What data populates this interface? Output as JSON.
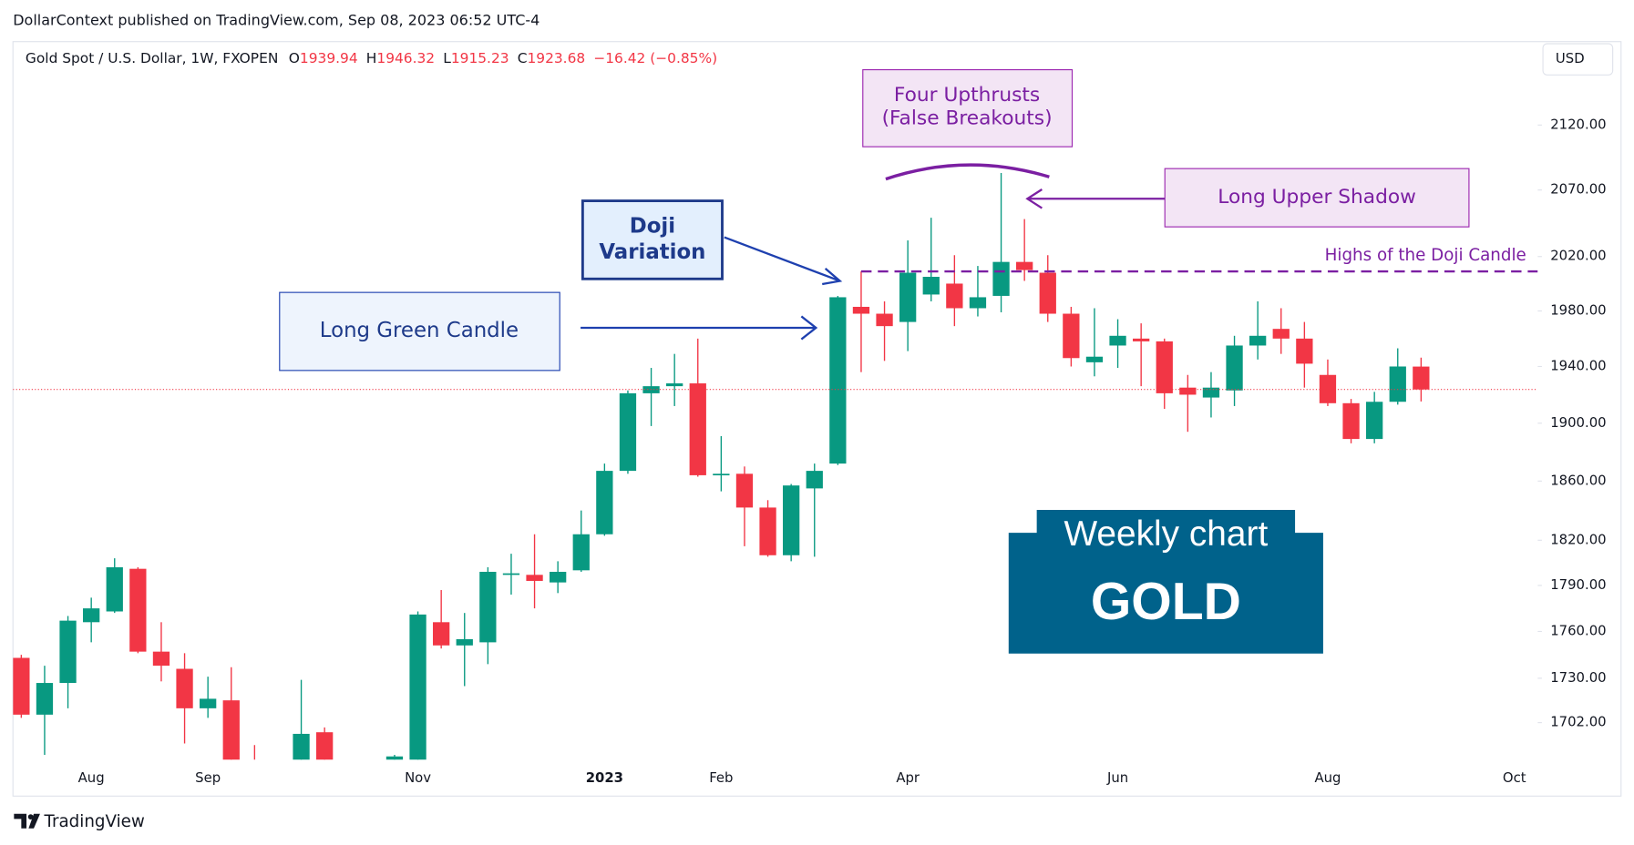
{
  "header": {
    "published": "DollarContext published on TradingView.com, Sep 08, 2023 06:52 UTC-4",
    "symbol": "Gold Spot / U.S. Dollar, 1W, FXOPEN",
    "ohlc": [
      {
        "label": "O",
        "value": "1939.94"
      },
      {
        "label": "H",
        "value": "1946.32"
      },
      {
        "label": "L",
        "value": "1915.23"
      },
      {
        "label": "C",
        "value": "1923.68"
      }
    ],
    "change": "−16.42 (−0.85%)",
    "currency": "USD"
  },
  "annotations": {
    "upthrusts": [
      "Four Upthrusts",
      "(False Breakouts)"
    ],
    "upper_shadow": "Long Upper Shadow",
    "doji_highs": "Highs of the Doji Candle",
    "doji": [
      "Doji",
      "Variation"
    ],
    "green_candle": "Long Green Candle",
    "badge": [
      "Weekly chart",
      "GOLD"
    ]
  },
  "footer": {
    "brand": "TradingView"
  },
  "chart_data": {
    "type": "candlestick",
    "log_scale": true,
    "grid": false,
    "up_color": "#089981",
    "down_color": "#f23645",
    "categories": [
      null,
      null,
      null,
      "Aug",
      null,
      null,
      null,
      null,
      "Sep",
      null,
      null,
      null,
      null,
      null,
      null,
      null,
      null,
      "Nov",
      null,
      null,
      null,
      null,
      null,
      null,
      null,
      "2023",
      null,
      null,
      null,
      null,
      "Feb",
      null,
      null,
      null,
      null,
      null,
      null,
      null,
      "Apr",
      null,
      null,
      null,
      null,
      null,
      null,
      null,
      null,
      "Jun",
      null,
      null,
      null,
      null,
      null,
      null,
      null,
      null,
      "Aug",
      null,
      null,
      null,
      null,
      null,
      null,
      null,
      "Oct"
    ],
    "open": [
      1743,
      1707,
      1727,
      1766,
      1773,
      1801,
      1747,
      1736,
      1711,
      1716,
      1672,
      null,
      1660,
      1696,
      null,
      null,
      1665,
      1670,
      1766,
      1751,
      1753,
      1797,
      1797,
      1792,
      1800,
      1824,
      1867,
      1921,
      1926,
      1928,
      1864,
      1865,
      1842,
      1810,
      1855,
      1872,
      1983,
      1978,
      1972,
      1992,
      2000,
      1982,
      1991,
      2016,
      2008,
      1978,
      1943,
      1955,
      1960,
      1958,
      1925,
      1918,
      1923,
      1955,
      1967,
      1960,
      1934,
      1914,
      1889,
      1915,
      1939.94,
      null,
      null,
      null,
      null
    ],
    "high": [
      1745,
      1738,
      1770,
      1782,
      1808,
      1802,
      1766,
      1746,
      1731,
      1737,
      1688,
      null,
      1729,
      1699,
      null,
      null,
      1682,
      1773,
      1787,
      1772,
      1802,
      1811,
      1824,
      1806,
      1840,
      1872,
      1923,
      1939,
      1949,
      1960,
      1891,
      1870,
      1847,
      1858,
      1872,
      1991,
      2009,
      1987,
      2032,
      2049,
      2021,
      2013,
      2083,
      2048,
      2021,
      1983,
      1982,
      1974,
      1971,
      1960,
      1934,
      1936,
      1962,
      1987,
      1982,
      1972,
      1945,
      1917,
      1922,
      1953,
      1946.32,
      null,
      null,
      null,
      null
    ],
    "low": [
      1705,
      1682,
      1711,
      1753,
      1772,
      1746,
      1728,
      1689,
      1705,
      1662,
      1655,
      null,
      1650,
      1655,
      null,
      null,
      1660,
      1665,
      1749,
      1725,
      1739,
      1784,
      1775,
      1785,
      1799,
      1823,
      1865,
      1898,
      1912,
      1863,
      1853,
      1816,
      1809,
      1806,
      1809,
      1871,
      1936,
      1944,
      1951,
      1987,
      1969,
      1976,
      1979,
      2002,
      1972,
      1940,
      1933,
      1939,
      1926,
      1910,
      1894,
      1904,
      1912,
      1945,
      1949,
      1925,
      1912,
      1886,
      1886,
      1913,
      1915.23,
      null,
      null,
      null,
      null
    ],
    "close": [
      1707,
      1727,
      1767,
      1775,
      1802,
      1747,
      1738,
      1711,
      1717,
      1670,
      1665,
      null,
      1695,
      1665,
      null,
      null,
      1681,
      1771,
      1751,
      1755,
      1799,
      1798,
      1793,
      1799,
      1824,
      1867,
      1921,
      1926,
      1928,
      1864,
      1865,
      1842,
      1810,
      1857,
      1867,
      1990,
      1978,
      1969,
      2008,
      2005,
      1982,
      1990,
      2016,
      2010,
      1978,
      1946,
      1947,
      1962,
      1958,
      1921,
      1920,
      1925,
      1955,
      1962,
      1960,
      1942,
      1914,
      1889,
      1915,
      1940,
      1923.68,
      null,
      null,
      null,
      null
    ],
    "ylim": [
      1679,
      2186
    ],
    "yticks": [
      {
        "value": 2120,
        "label": "2120.00"
      },
      {
        "value": 2070,
        "label": "2070.00"
      },
      {
        "value": 2020,
        "label": "2020.00"
      },
      {
        "value": 1980,
        "label": "1980.00"
      },
      {
        "value": 1940,
        "label": "1940.00"
      },
      {
        "value": 1900,
        "label": "1900.00"
      },
      {
        "value": 1860,
        "label": "1860.00"
      },
      {
        "value": 1820,
        "label": "1820.00"
      },
      {
        "value": 1790,
        "label": "1790.00"
      },
      {
        "value": 1760,
        "label": "1760.00"
      },
      {
        "value": 1730,
        "label": "1730.00"
      },
      {
        "value": 1702,
        "label": "1702.00"
      }
    ]
  }
}
